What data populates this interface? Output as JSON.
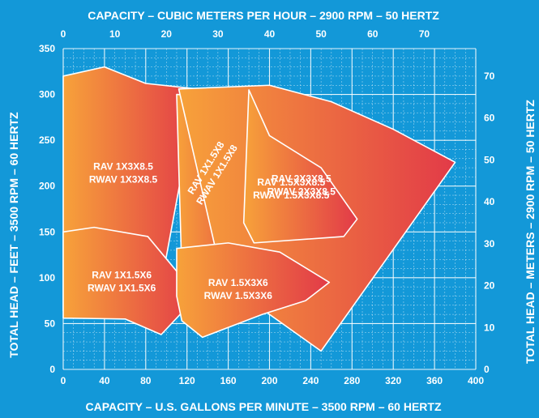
{
  "chart_data": {
    "type": "area",
    "title_top": "CAPACITY – CUBIC METERS PER HOUR – 2900 RPM – 50 HERTZ",
    "xlabel": "CAPACITY – U.S. GALLONS PER MINUTE – 3500 RPM – 60 HERTZ",
    "ylabel": "TOTAL HEAD – FEET – 3500 RPM – 60 HERTZ",
    "ylabel_right": "TOTAL HEAD – METERS – 2900 RPM – 50 HERTZ",
    "x_gpm": {
      "range": [
        0,
        400
      ],
      "ticks": [
        "0",
        "40",
        "80",
        "120",
        "160",
        "200",
        "240",
        "280",
        "320",
        "360",
        "400"
      ]
    },
    "x_m3h": {
      "range": [
        0,
        80
      ],
      "ticks": [
        "0",
        "10",
        "20",
        "30",
        "40",
        "50",
        "60",
        "70"
      ]
    },
    "y_feet": {
      "range": [
        0,
        350
      ],
      "ticks": [
        "0",
        "50",
        "100",
        "150",
        "200",
        "250",
        "300",
        "350"
      ]
    },
    "y_meters": {
      "range": [
        0,
        75
      ],
      "ticks": [
        "10",
        "20",
        "30",
        "40",
        "50",
        "60",
        "70"
      ]
    },
    "grid": true,
    "colors": {
      "background": "#1398d8",
      "grid": "#ffffff",
      "fill_start": "#f7a23a",
      "fill_end": "#e23a48",
      "text": "#ffffff"
    },
    "series": [
      {
        "labels": [
          "RAV 1X3X8.5",
          "RWAV 1X3X8.5"
        ],
        "outline": [
          [
            0,
            320
          ],
          [
            40,
            330
          ],
          [
            80,
            312
          ],
          [
            130,
            306
          ],
          [
            97,
            105
          ],
          [
            60,
            70
          ],
          [
            0,
            64
          ]
        ]
      },
      {
        "labels": [
          "RAV 1X1.5X8",
          "RWAV 1X1.5X8"
        ],
        "outline": [
          [
            110,
            300
          ],
          [
            145,
            298
          ],
          [
            195,
            268
          ],
          [
            150,
            112
          ],
          [
            115,
            105
          ]
        ]
      },
      {
        "labels": [
          "RAV 2X3X8.5",
          "RWAV 2X3X8.5"
        ],
        "outline": [
          [
            112,
            306
          ],
          [
            200,
            310
          ],
          [
            260,
            292
          ],
          [
            320,
            262
          ],
          [
            380,
            226
          ],
          [
            250,
            20
          ],
          [
            175,
            80
          ],
          [
            150,
            120
          ]
        ]
      },
      {
        "labels": [
          "RAV 1.5X3X8.5",
          "RWAV 1.5X3X8.5"
        ],
        "outline": [
          [
            180,
            305
          ],
          [
            200,
            255
          ],
          [
            250,
            220
          ],
          [
            285,
            164
          ],
          [
            272,
            145
          ],
          [
            185,
            138
          ],
          [
            175,
            160
          ]
        ]
      },
      {
        "labels": [
          "RAV 1X1.5X6",
          "RWAV 1X1.5X6"
        ],
        "outline": [
          [
            0,
            150
          ],
          [
            30,
            155
          ],
          [
            82,
            145
          ],
          [
            130,
            80
          ],
          [
            95,
            38
          ],
          [
            60,
            55
          ],
          [
            0,
            56
          ]
        ]
      },
      {
        "labels": [
          "RAV 1.5X3X6",
          "RWAV 1.5X3X6"
        ],
        "outline": [
          [
            110,
            132
          ],
          [
            160,
            138
          ],
          [
            210,
            128
          ],
          [
            258,
            95
          ],
          [
            235,
            75
          ],
          [
            193,
            60
          ],
          [
            135,
            35
          ],
          [
            115,
            53
          ],
          [
            110,
            80
          ]
        ]
      }
    ]
  }
}
